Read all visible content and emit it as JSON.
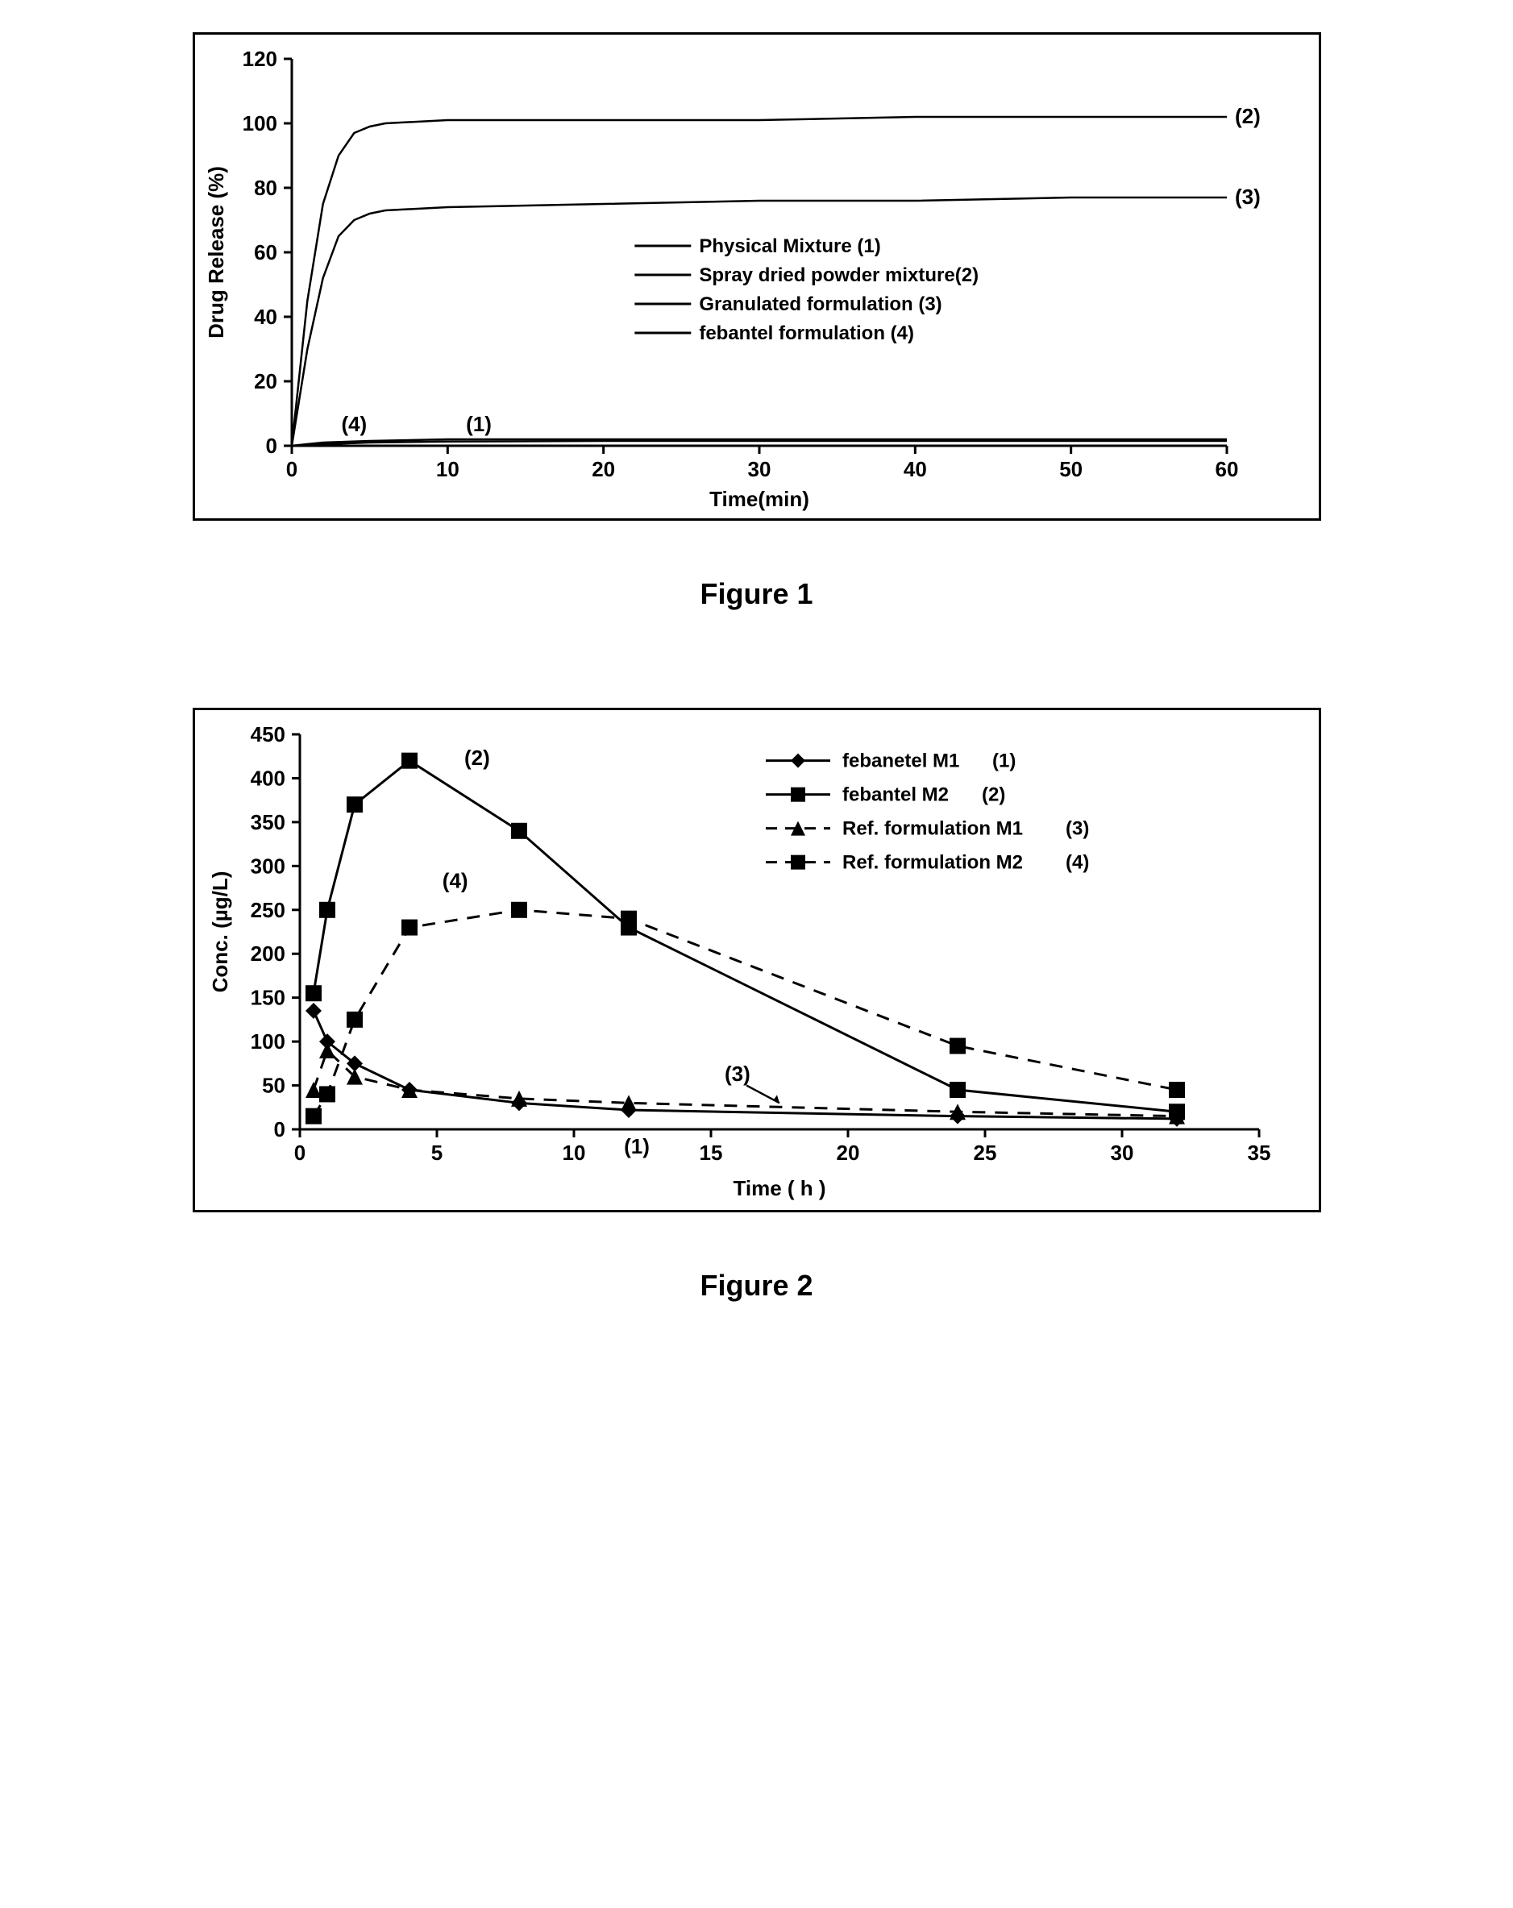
{
  "figure1": {
    "type": "line",
    "caption": "Figure 1",
    "xlabel": "Time(min)",
    "ylabel": "Drug Release (%)",
    "xlim": [
      0,
      60
    ],
    "ylim": [
      0,
      120
    ],
    "xtick_step": 10,
    "ytick_step": 20,
    "line_color": "#000000",
    "line_width": 2.5,
    "background_color": "#ffffff",
    "tick_fontsize": 26,
    "label_fontsize": 26,
    "legend_items": [
      "Physical Mixture (1)",
      "Spray dried powder mixture(2)",
      "Granulated formulation (3)",
      "febantel formulation (4)"
    ],
    "callouts": {
      "s1": "(1)",
      "s2": "(2)",
      "s3": "(3)",
      "s4": "(4)"
    },
    "series": {
      "physical_mixture_1": {
        "x": [
          0,
          2,
          5,
          10,
          20,
          30,
          40,
          50,
          60
        ],
        "y": [
          0,
          1,
          1.5,
          2,
          2,
          2,
          2,
          2,
          2
        ]
      },
      "spray_dried_2": {
        "x": [
          0,
          1,
          2,
          3,
          4,
          5,
          6,
          10,
          20,
          30,
          40,
          50,
          60
        ],
        "y": [
          0,
          45,
          75,
          90,
          97,
          99,
          100,
          101,
          101,
          101,
          102,
          102,
          102
        ]
      },
      "granulated_3": {
        "x": [
          0,
          1,
          2,
          3,
          4,
          5,
          6,
          10,
          20,
          30,
          40,
          50,
          60
        ],
        "y": [
          0,
          30,
          52,
          65,
          70,
          72,
          73,
          74,
          75,
          76,
          76,
          77,
          77
        ]
      },
      "febantel_4": {
        "x": [
          0,
          2,
          5,
          10,
          20,
          30,
          40,
          50,
          60
        ],
        "y": [
          0,
          0.5,
          1,
          1.3,
          1.5,
          1.5,
          1.5,
          1.5,
          1.5
        ]
      }
    }
  },
  "figure2": {
    "type": "line-scatter",
    "caption": "Figure 2",
    "xlabel": "Time ( h )",
    "ylabel": "Conc. (µg/L)",
    "xlim": [
      0,
      35
    ],
    "ylim": [
      0,
      450
    ],
    "xtick_step": 5,
    "ytick_step": 50,
    "background_color": "#ffffff",
    "tick_fontsize": 26,
    "label_fontsize": 26,
    "line_width": 3,
    "marker_size": 10,
    "colors": {
      "line": "#000000",
      "dash": "#000000"
    },
    "legend_items": [
      {
        "label": "febanetel M1",
        "tag": "(1)",
        "marker": "diamond",
        "dash": false
      },
      {
        "label": "febantel M2",
        "tag": "(2)",
        "marker": "square",
        "dash": false
      },
      {
        "label": "Ref. formulation M1",
        "tag": "(3)",
        "marker": "triangle",
        "dash": true
      },
      {
        "label": "Ref. formulation M2",
        "tag": "(4)",
        "marker": "square",
        "dash": true
      }
    ],
    "callouts": {
      "s1": "(1)",
      "s2": "(2)",
      "s3": "(3)",
      "s4": "(4)"
    },
    "series": {
      "febantel_m1_1": {
        "marker": "diamond",
        "dash": false,
        "x": [
          0.5,
          1,
          2,
          4,
          8,
          12,
          24,
          32
        ],
        "y": [
          135,
          100,
          75,
          45,
          30,
          22,
          15,
          12
        ]
      },
      "febantel_m2_2": {
        "marker": "square",
        "dash": false,
        "x": [
          0.5,
          1,
          2,
          4,
          8,
          12,
          24,
          32
        ],
        "y": [
          155,
          250,
          370,
          420,
          340,
          230,
          45,
          20
        ]
      },
      "ref_m1_3": {
        "marker": "triangle",
        "dash": true,
        "x": [
          0.5,
          1,
          2,
          4,
          8,
          12,
          24,
          32
        ],
        "y": [
          45,
          90,
          60,
          45,
          35,
          30,
          20,
          15
        ]
      },
      "ref_m2_4": {
        "marker": "square",
        "dash": true,
        "x": [
          0.5,
          1,
          2,
          4,
          8,
          12,
          24,
          32
        ],
        "y": [
          15,
          40,
          125,
          230,
          250,
          240,
          95,
          45
        ]
      }
    }
  }
}
